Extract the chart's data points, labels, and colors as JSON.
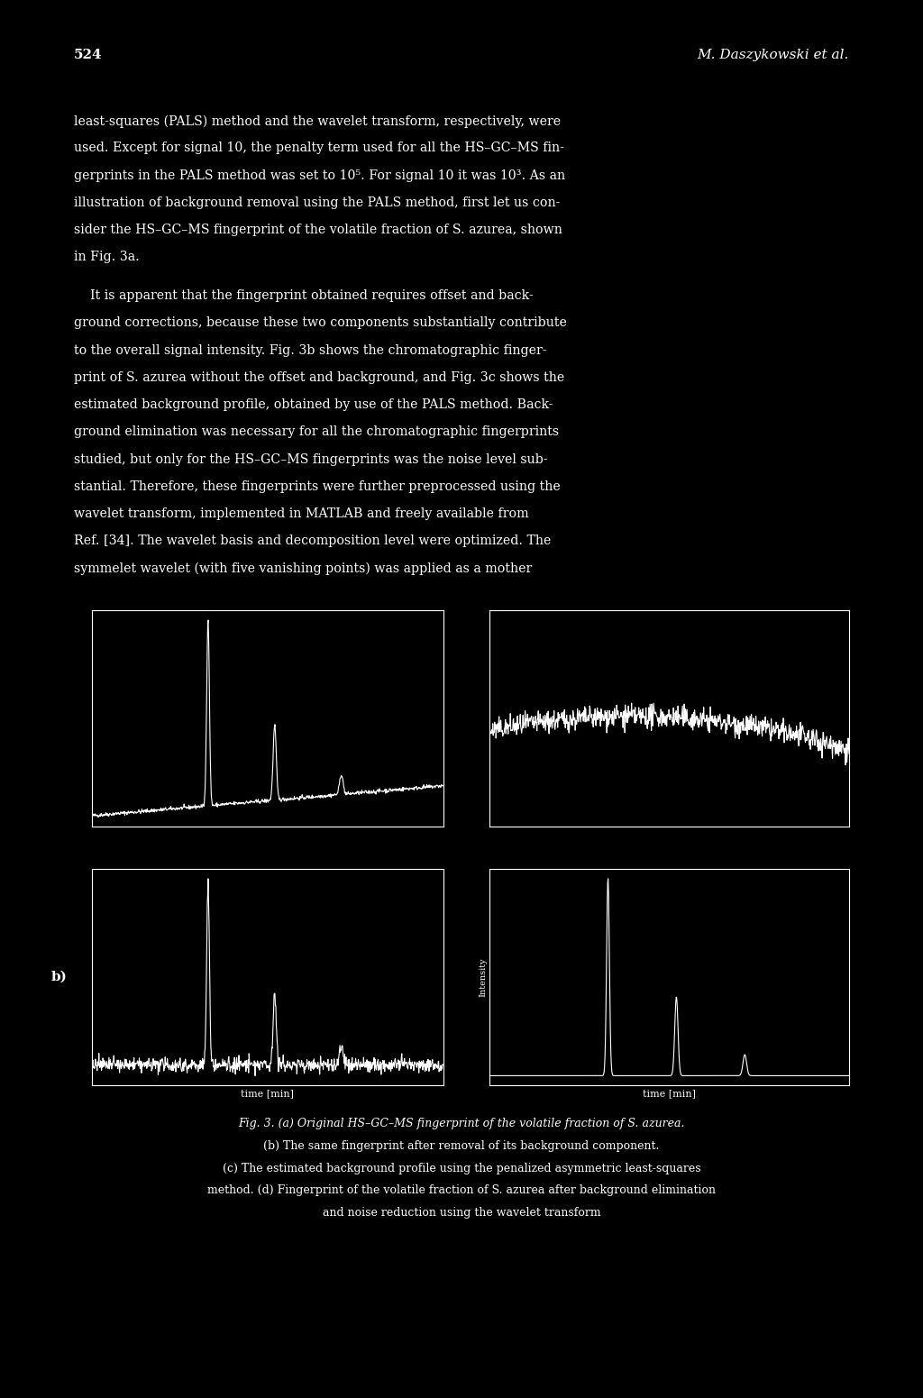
{
  "bg_color": "#000000",
  "text_color": "#ffffff",
  "page_number": "524",
  "author": "M. Daszykowski et al.",
  "body_text1": "least-squares (PALS) method and the wavelet transform, respectively, were\nused. Except for signal 10, the penalty term used for all the HS–GC–MS fin-\ngerprints in the PALS method was set to 10⁵. For signal 10 it was 10³. As an\nillustration of background removal using the PALS method, first let us con-\nsider the HS–GC–MS fingerprint of the volatile fraction of S. azurea, shown\nin Fig. 3a.",
  "body_text2": "    It is apparent that the fingerprint obtained requires offset and back-\nground corrections, because these two components substantially contribute\nto the overall signal intensity. Fig. 3b shows the chromatographic finger-\nprint of S. azurea without the offset and background, and Fig. 3c shows the\nestimated background profile, obtained by use of the PALS method. Back-\nground elimination was necessary for all the chromatographic fingerprints\nstudied, but only for the HS–GC–MS fingerprints was the noise level sub-\nstantial. Therefore, these fingerprints were further preprocessed using the\nwavelet transform, implemented in MATLAB and freely available from\nRef. [34]. The wavelet basis and decomposition level were optimized. The\nsymmelet wavelet (with five vanishing points) was applied as a mother",
  "caption_line1": "Fig. 3. (a) Original HS–GC–MS fingerprint of the volatile fraction of S. azurea.",
  "caption_line2": "(b) The same fingerprint after removal of its background component.",
  "caption_line3": "(c) The estimated background profile using the penalized asymmetric least-squares",
  "caption_line4": "method. (d) Fingerprint of the volatile fraction of S. azurea after background elimination",
  "caption_line5": "and noise reduction using the wavelet transform",
  "b_label": "b)",
  "xlabel": "time [min]",
  "ylabel": "Intensity"
}
